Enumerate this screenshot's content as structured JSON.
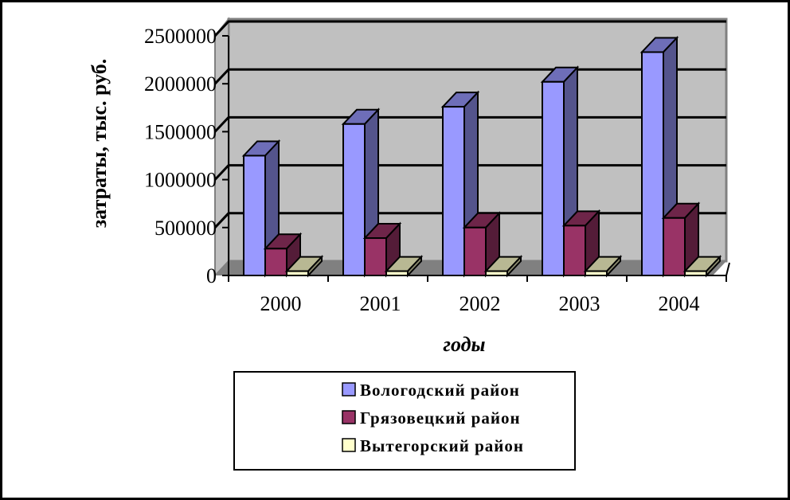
{
  "chart_data": {
    "type": "bar",
    "title": "",
    "xlabel": "годы",
    "ylabel": "затраты, тыс. руб.",
    "categories": [
      "2000",
      "2001",
      "2002",
      "2003",
      "2004"
    ],
    "ylim": [
      0,
      2500000
    ],
    "yticks": [
      0,
      500000,
      1000000,
      1500000,
      2000000,
      2500000
    ],
    "ytick_labels": [
      "0",
      "500000",
      "1000000",
      "1500000",
      "2000000",
      "2500000"
    ],
    "grid": true,
    "legend_position": "bottom",
    "series": [
      {
        "name": "Вологодский район",
        "color": "#9999ff",
        "values": [
          1250000,
          1580000,
          1760000,
          2020000,
          2330000
        ]
      },
      {
        "name": "Грязовецкий район",
        "color": "#993366",
        "values": [
          280000,
          390000,
          500000,
          520000,
          600000
        ]
      },
      {
        "name": "Вытегорский район",
        "color": "#ffffcc",
        "values": [
          45000,
          45000,
          45000,
          45000,
          45000
        ]
      }
    ]
  }
}
